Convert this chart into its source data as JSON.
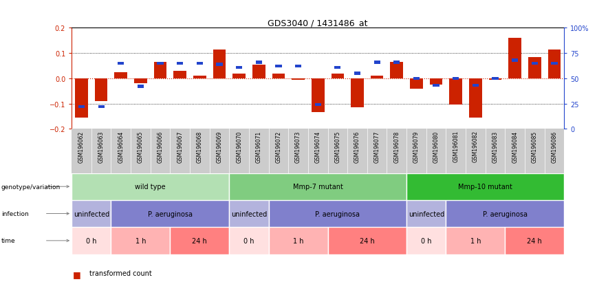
{
  "title": "GDS3040 / 1431486_at",
  "samples": [
    "GSM196062",
    "GSM196063",
    "GSM196064",
    "GSM196065",
    "GSM196066",
    "GSM196067",
    "GSM196068",
    "GSM196069",
    "GSM196070",
    "GSM196071",
    "GSM196072",
    "GSM196073",
    "GSM196074",
    "GSM196075",
    "GSM196076",
    "GSM196077",
    "GSM196078",
    "GSM196079",
    "GSM196080",
    "GSM196081",
    "GSM196082",
    "GSM196083",
    "GSM196084",
    "GSM196085",
    "GSM196086"
  ],
  "red_values": [
    -0.155,
    -0.09,
    0.025,
    -0.02,
    0.065,
    0.03,
    0.01,
    0.115,
    0.02,
    0.055,
    0.02,
    -0.005,
    -0.135,
    0.02,
    -0.115,
    0.01,
    0.065,
    -0.04,
    -0.025,
    -0.105,
    -0.155,
    -0.005,
    0.16,
    0.085,
    0.115
  ],
  "blue_percentiles": [
    22,
    22,
    65,
    42,
    65,
    65,
    65,
    64,
    61,
    66,
    62,
    62,
    24,
    61,
    55,
    66,
    66,
    50,
    43,
    50,
    43,
    50,
    68,
    65,
    65
  ],
  "genotype_groups": [
    {
      "label": "wild type",
      "start": 0,
      "end": 8,
      "color": "#b3e0b3"
    },
    {
      "label": "Mmp-7 mutant",
      "start": 8,
      "end": 17,
      "color": "#80cc80"
    },
    {
      "label": "Mmp-10 mutant",
      "start": 17,
      "end": 25,
      "color": "#33bb33"
    }
  ],
  "infection_groups": [
    {
      "label": "uninfected",
      "start": 0,
      "end": 2,
      "color": "#b3b3dd"
    },
    {
      "label": "P. aeruginosa",
      "start": 2,
      "end": 8,
      "color": "#8080cc"
    },
    {
      "label": "uninfected",
      "start": 8,
      "end": 10,
      "color": "#b3b3dd"
    },
    {
      "label": "P. aeruginosa",
      "start": 10,
      "end": 17,
      "color": "#8080cc"
    },
    {
      "label": "uninfected",
      "start": 17,
      "end": 19,
      "color": "#b3b3dd"
    },
    {
      "label": "P. aeruginosa",
      "start": 19,
      "end": 25,
      "color": "#8080cc"
    }
  ],
  "time_groups": [
    {
      "label": "0 h",
      "start": 0,
      "end": 2,
      "color": "#ffe0e0"
    },
    {
      "label": "1 h",
      "start": 2,
      "end": 5,
      "color": "#ffb3b3"
    },
    {
      "label": "24 h",
      "start": 5,
      "end": 8,
      "color": "#ff8080"
    },
    {
      "label": "0 h",
      "start": 8,
      "end": 10,
      "color": "#ffe0e0"
    },
    {
      "label": "1 h",
      "start": 10,
      "end": 13,
      "color": "#ffb3b3"
    },
    {
      "label": "24 h",
      "start": 13,
      "end": 17,
      "color": "#ff8080"
    },
    {
      "label": "0 h",
      "start": 17,
      "end": 19,
      "color": "#ffe0e0"
    },
    {
      "label": "1 h",
      "start": 19,
      "end": 22,
      "color": "#ffb3b3"
    },
    {
      "label": "24 h",
      "start": 22,
      "end": 25,
      "color": "#ff8080"
    }
  ],
  "ylim": [
    -0.2,
    0.2
  ],
  "yticks_left": [
    -0.2,
    -0.1,
    0.0,
    0.1,
    0.2
  ],
  "right_ytick_pcts": [
    0,
    25,
    50,
    75,
    100
  ],
  "right_ytick_labels": [
    "0",
    "25",
    "50",
    "75",
    "100%"
  ],
  "red_color": "#cc2200",
  "blue_color": "#2244cc",
  "label_bg": "#cccccc",
  "fig_bg": "#ffffff"
}
